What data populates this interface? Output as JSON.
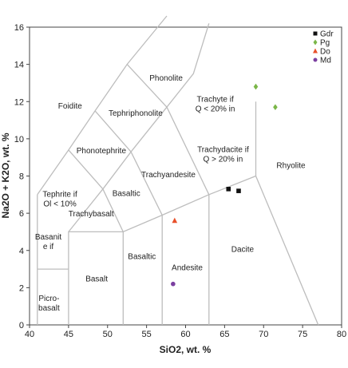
{
  "chart_data": {
    "type": "scatter",
    "xlabel": "SiO2, wt. %",
    "ylabel": "Na2O + K2O, wt. %",
    "xlim": [
      40,
      80
    ],
    "ylim": [
      0,
      16
    ],
    "xticks": [
      "40",
      "45",
      "50",
      "55",
      "60",
      "65",
      "70",
      "75",
      "80"
    ],
    "yticks": [
      "0",
      "2",
      "4",
      "6",
      "8",
      "10",
      "12",
      "14",
      "16"
    ],
    "grid": false,
    "legend_position": "top-right",
    "series": [
      {
        "name": "Gdr",
        "marker": "square",
        "color": "#111111",
        "points": [
          [
            65.5,
            7.3
          ],
          [
            66.8,
            7.2
          ]
        ]
      },
      {
        "name": "Pg",
        "marker": "diamond",
        "color": "#7ab648",
        "points": [
          [
            69.0,
            12.8
          ],
          [
            71.5,
            11.7
          ]
        ]
      },
      {
        "name": "Do",
        "marker": "triangle",
        "color": "#e8502a",
        "points": [
          [
            58.6,
            5.6
          ]
        ]
      },
      {
        "name": "Md",
        "marker": "circle",
        "color": "#7b3fa0",
        "points": [
          [
            58.4,
            2.2
          ]
        ]
      }
    ],
    "fields": [
      {
        "lines": [
          "Foidite"
        ],
        "at": [
          45.2,
          11.8
        ]
      },
      {
        "lines": [
          "Phonolite"
        ],
        "at": [
          57.5,
          13.3
        ]
      },
      {
        "lines": [
          "Tephriphonolite"
        ],
        "at": [
          53.6,
          11.4
        ]
      },
      {
        "lines": [
          "Phonotephrite"
        ],
        "at": [
          49.2,
          9.4
        ]
      },
      {
        "lines": [
          "Trachyte if",
          "Q < 20% in"
        ],
        "at": [
          63.8,
          11.9
        ]
      },
      {
        "lines": [
          "Trachyandesite"
        ],
        "at": [
          57.8,
          8.1
        ]
      },
      {
        "lines": [
          "Trachydacite if",
          "Q > 20% in"
        ],
        "at": [
          64.8,
          9.2
        ]
      },
      {
        "lines": [
          "Rhyolite"
        ],
        "at": [
          73.5,
          8.6
        ]
      },
      {
        "lines": [
          "Tephrite if",
          "Ol < 10%"
        ],
        "at": [
          43.9,
          6.8
        ]
      },
      {
        "lines": [
          "Basaltic"
        ],
        "at": [
          52.4,
          7.1
        ]
      },
      {
        "lines": [
          "Trachybasalt"
        ],
        "at": [
          47.9,
          6.0
        ]
      },
      {
        "lines": [
          "Basanit",
          "e if"
        ],
        "at": [
          42.4,
          4.5
        ]
      },
      {
        "lines": [
          "Andesite"
        ],
        "at": [
          60.2,
          3.1
        ]
      },
      {
        "lines": [
          "Basaltic"
        ],
        "at": [
          54.4,
          3.7
        ]
      },
      {
        "lines": [
          "Basalt"
        ],
        "at": [
          48.6,
          2.5
        ]
      },
      {
        "lines": [
          "Dacite"
        ],
        "at": [
          67.3,
          4.1
        ]
      },
      {
        "lines": [
          "Picro-",
          "basalt"
        ],
        "at": [
          42.5,
          1.2
        ]
      }
    ]
  }
}
